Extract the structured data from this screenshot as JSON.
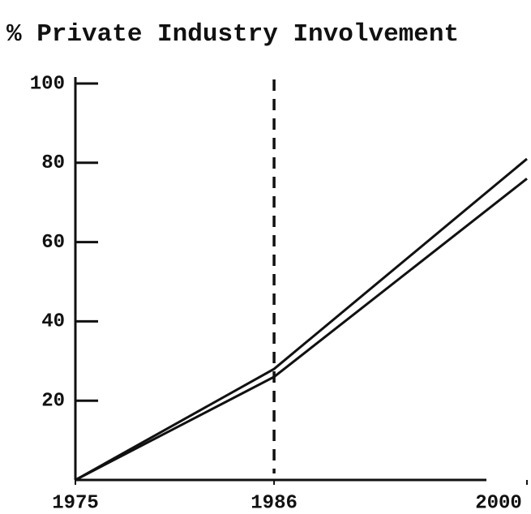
{
  "chart_data": {
    "type": "line",
    "title": "% Private Industry Involvement",
    "x": [
      1975,
      1986,
      2000
    ],
    "series": [
      {
        "color": "#111111",
        "values": [
          0,
          28,
          81
        ]
      },
      {
        "color": "#111111",
        "values": [
          0,
          26,
          76
        ]
      }
    ],
    "xlim": [
      1975,
      2000
    ],
    "xticks": [
      1975,
      1986,
      2000
    ],
    "ylim": [
      0,
      100
    ],
    "yticks": [
      20,
      40,
      60,
      80,
      100
    ],
    "vline_x": 1986,
    "grid": false
  }
}
